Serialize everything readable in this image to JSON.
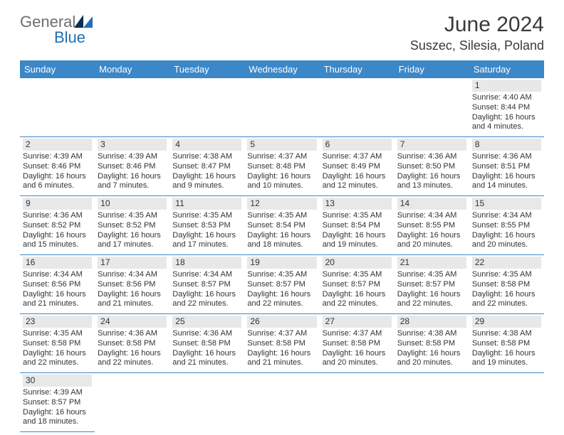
{
  "brand": {
    "text_a": "General",
    "text_b": "Blue",
    "color_a": "#6d6e71",
    "color_b": "#1f6fb2"
  },
  "header": {
    "title": "June 2024",
    "location": "Suszec, Silesia, Poland"
  },
  "colors": {
    "header_bg": "#3b87c8",
    "header_fg": "#ffffff",
    "daynum_bg": "#e8e8e8",
    "row_border": "#3b87c8",
    "text": "#333333"
  },
  "calendar": {
    "day_headers": [
      "Sunday",
      "Monday",
      "Tuesday",
      "Wednesday",
      "Thursday",
      "Friday",
      "Saturday"
    ],
    "first_day_col": 6,
    "days": [
      {
        "n": 1,
        "sunrise": "4:40 AM",
        "sunset": "8:44 PM",
        "daylight": "16 hours and 4 minutes."
      },
      {
        "n": 2,
        "sunrise": "4:39 AM",
        "sunset": "8:46 PM",
        "daylight": "16 hours and 6 minutes."
      },
      {
        "n": 3,
        "sunrise": "4:39 AM",
        "sunset": "8:46 PM",
        "daylight": "16 hours and 7 minutes."
      },
      {
        "n": 4,
        "sunrise": "4:38 AM",
        "sunset": "8:47 PM",
        "daylight": "16 hours and 9 minutes."
      },
      {
        "n": 5,
        "sunrise": "4:37 AM",
        "sunset": "8:48 PM",
        "daylight": "16 hours and 10 minutes."
      },
      {
        "n": 6,
        "sunrise": "4:37 AM",
        "sunset": "8:49 PM",
        "daylight": "16 hours and 12 minutes."
      },
      {
        "n": 7,
        "sunrise": "4:36 AM",
        "sunset": "8:50 PM",
        "daylight": "16 hours and 13 minutes."
      },
      {
        "n": 8,
        "sunrise": "4:36 AM",
        "sunset": "8:51 PM",
        "daylight": "16 hours and 14 minutes."
      },
      {
        "n": 9,
        "sunrise": "4:36 AM",
        "sunset": "8:52 PM",
        "daylight": "16 hours and 15 minutes."
      },
      {
        "n": 10,
        "sunrise": "4:35 AM",
        "sunset": "8:52 PM",
        "daylight": "16 hours and 17 minutes."
      },
      {
        "n": 11,
        "sunrise": "4:35 AM",
        "sunset": "8:53 PM",
        "daylight": "16 hours and 17 minutes."
      },
      {
        "n": 12,
        "sunrise": "4:35 AM",
        "sunset": "8:54 PM",
        "daylight": "16 hours and 18 minutes."
      },
      {
        "n": 13,
        "sunrise": "4:35 AM",
        "sunset": "8:54 PM",
        "daylight": "16 hours and 19 minutes."
      },
      {
        "n": 14,
        "sunrise": "4:34 AM",
        "sunset": "8:55 PM",
        "daylight": "16 hours and 20 minutes."
      },
      {
        "n": 15,
        "sunrise": "4:34 AM",
        "sunset": "8:55 PM",
        "daylight": "16 hours and 20 minutes."
      },
      {
        "n": 16,
        "sunrise": "4:34 AM",
        "sunset": "8:56 PM",
        "daylight": "16 hours and 21 minutes."
      },
      {
        "n": 17,
        "sunrise": "4:34 AM",
        "sunset": "8:56 PM",
        "daylight": "16 hours and 21 minutes."
      },
      {
        "n": 18,
        "sunrise": "4:34 AM",
        "sunset": "8:57 PM",
        "daylight": "16 hours and 22 minutes."
      },
      {
        "n": 19,
        "sunrise": "4:35 AM",
        "sunset": "8:57 PM",
        "daylight": "16 hours and 22 minutes."
      },
      {
        "n": 20,
        "sunrise": "4:35 AM",
        "sunset": "8:57 PM",
        "daylight": "16 hours and 22 minutes."
      },
      {
        "n": 21,
        "sunrise": "4:35 AM",
        "sunset": "8:57 PM",
        "daylight": "16 hours and 22 minutes."
      },
      {
        "n": 22,
        "sunrise": "4:35 AM",
        "sunset": "8:58 PM",
        "daylight": "16 hours and 22 minutes."
      },
      {
        "n": 23,
        "sunrise": "4:35 AM",
        "sunset": "8:58 PM",
        "daylight": "16 hours and 22 minutes."
      },
      {
        "n": 24,
        "sunrise": "4:36 AM",
        "sunset": "8:58 PM",
        "daylight": "16 hours and 22 minutes."
      },
      {
        "n": 25,
        "sunrise": "4:36 AM",
        "sunset": "8:58 PM",
        "daylight": "16 hours and 21 minutes."
      },
      {
        "n": 26,
        "sunrise": "4:37 AM",
        "sunset": "8:58 PM",
        "daylight": "16 hours and 21 minutes."
      },
      {
        "n": 27,
        "sunrise": "4:37 AM",
        "sunset": "8:58 PM",
        "daylight": "16 hours and 20 minutes."
      },
      {
        "n": 28,
        "sunrise": "4:38 AM",
        "sunset": "8:58 PM",
        "daylight": "16 hours and 20 minutes."
      },
      {
        "n": 29,
        "sunrise": "4:38 AM",
        "sunset": "8:58 PM",
        "daylight": "16 hours and 19 minutes."
      },
      {
        "n": 30,
        "sunrise": "4:39 AM",
        "sunset": "8:57 PM",
        "daylight": "16 hours and 18 minutes."
      }
    ],
    "labels": {
      "sunrise": "Sunrise:",
      "sunset": "Sunset:",
      "daylight": "Daylight:"
    }
  }
}
